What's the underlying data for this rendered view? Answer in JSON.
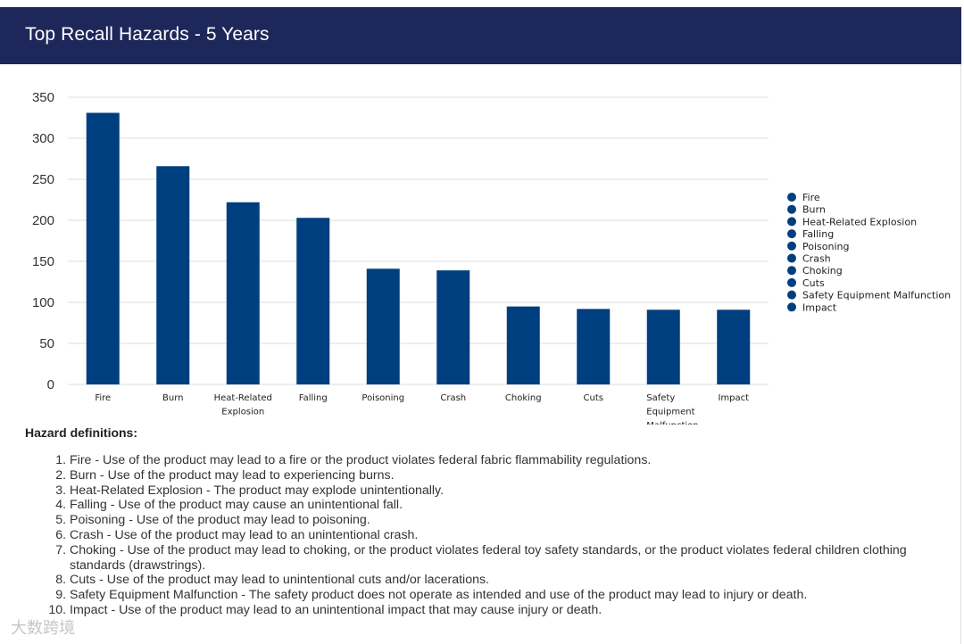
{
  "header": {
    "title": "Top Recall Hazards - 5 Years"
  },
  "colors": {
    "bar": "#003f7f",
    "header_bg": "#1e2759",
    "grid": "#dddddd"
  },
  "chart_data": {
    "type": "bar",
    "title": "Top Recall Hazards - 5 Years",
    "categories": [
      "Fire",
      "Burn",
      "Heat-Related Explosion",
      "Falling",
      "Poisoning",
      "Crash",
      "Choking",
      "Cuts",
      "Safety Equipment Malfunction",
      "Impact"
    ],
    "values": [
      331,
      266,
      222,
      203,
      141,
      139,
      95,
      92,
      91,
      91
    ],
    "ylim": [
      0,
      350
    ],
    "yticks": [
      0,
      50,
      100,
      150,
      200,
      250,
      300,
      350
    ],
    "legend_position": "right",
    "grid": true,
    "xlabel": "",
    "ylabel": ""
  },
  "definitions": {
    "title": "Hazard definitions:",
    "items": [
      "Fire - Use of the product may lead to a fire or the product violates federal fabric flammability regulations.",
      "Burn - Use of the product may lead to experiencing burns.",
      "Heat-Related Explosion - The product may explode unintentionally.",
      "Falling - Use of the product may cause an unintentional fall.",
      "Poisoning - Use of the product may lead to poisoning.",
      "Crash - Use of the product may lead to an unintentional crash.",
      "Choking - Use of the product may lead to choking, or the product violates federal toy safety standards, or the product violates federal children clothing standards (drawstrings).",
      "Cuts - Use of the product may lead to unintentional cuts and/or lacerations.",
      "Safety Equipment Malfunction - The safety product does not operate as intended and use of the product may lead to injury or death.",
      "Impact - Use of the product may lead to an unintentional impact that may cause injury or death."
    ]
  },
  "watermark": "大数跨境"
}
